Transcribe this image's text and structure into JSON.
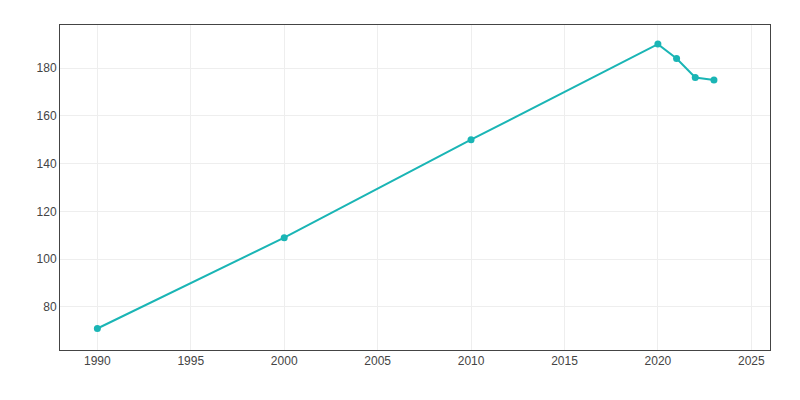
{
  "chart_data": {
    "type": "line",
    "x": [
      1990,
      2000,
      2010,
      2020,
      2021,
      2022,
      2023
    ],
    "values": [
      71,
      109,
      150,
      190,
      184,
      176,
      175
    ],
    "color": "#1ab5b5",
    "marker": "circle",
    "xlim": [
      1988,
      2026
    ],
    "ylim": [
      62,
      198
    ],
    "xticks": [
      1990,
      1995,
      2000,
      2005,
      2010,
      2015,
      2020,
      2025
    ],
    "yticks": [
      80,
      100,
      120,
      140,
      160,
      180
    ],
    "grid": true
  }
}
